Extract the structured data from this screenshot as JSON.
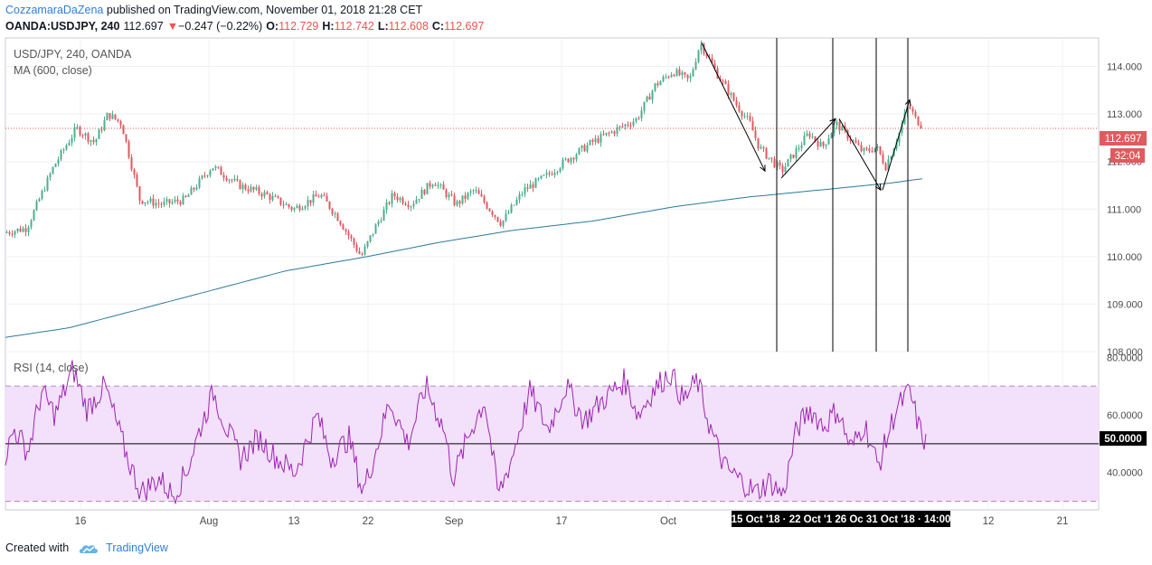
{
  "header": {
    "author": "CozzamaraDaZena",
    "published": "published on TradingView.com, November 01, 2018 21:28 CET"
  },
  "quote": {
    "symbol": "OANDA:USDJPY, 240",
    "price": "112.697",
    "change_arrow": "▼",
    "change": "−0.247 (−0.22%)",
    "open_label": "O:",
    "open": "112.729",
    "high_label": "H:",
    "high": "112.742",
    "low_label": "L:",
    "low": "112.608",
    "close_label": "C:",
    "close": "112.697"
  },
  "footer": {
    "created_with": "Created with",
    "brand": "TradingView",
    "logo_icon": "tradingview-cloud-icon"
  },
  "colors": {
    "up": "#4caf8e",
    "down": "#e05a5f",
    "ma": "#2b7a9e",
    "rsi": "#9c27b0",
    "rsi_band": "#f3e0fb",
    "price_line": "#e05a5f",
    "grid": "#eef0f3"
  },
  "chart_data": [
    {
      "type": "candlestick",
      "title": "USD/JPY, 240, OANDA",
      "indicator_label": "MA (600, close)",
      "ylim": [
        108.0,
        114.6
      ],
      "y_ticks": [
        "108.000",
        "109.000",
        "110.000",
        "111.000",
        "112.000",
        "113.000",
        "114.000"
      ],
      "y_tick_values": [
        108,
        109,
        110,
        111,
        112,
        113,
        114
      ],
      "last_price_label": "112.697",
      "last_price": 112.697,
      "countdown_label": "32:04",
      "grid": true,
      "price_anchors": [
        [
          0,
          110.5
        ],
        [
          25,
          110.6
        ],
        [
          55,
          111.9
        ],
        [
          80,
          112.7
        ],
        [
          100,
          112.4
        ],
        [
          115,
          113.0
        ],
        [
          130,
          112.8
        ],
        [
          150,
          111.2
        ],
        [
          175,
          111.1
        ],
        [
          200,
          111.2
        ],
        [
          230,
          111.9
        ],
        [
          260,
          111.5
        ],
        [
          290,
          111.3
        ],
        [
          320,
          111.0
        ],
        [
          350,
          111.3
        ],
        [
          370,
          110.8
        ],
        [
          395,
          110.0
        ],
        [
          410,
          110.6
        ],
        [
          430,
          111.3
        ],
        [
          450,
          111.1
        ],
        [
          475,
          111.6
        ],
        [
          500,
          111.1
        ],
        [
          520,
          111.4
        ],
        [
          550,
          110.7
        ],
        [
          575,
          111.4
        ],
        [
          600,
          111.7
        ],
        [
          620,
          112.0
        ],
        [
          650,
          112.4
        ],
        [
          680,
          112.7
        ],
        [
          700,
          112.9
        ],
        [
          720,
          113.6
        ],
        [
          740,
          113.9
        ],
        [
          758,
          113.7
        ],
        [
          770,
          114.5
        ],
        [
          790,
          113.8
        ],
        [
          810,
          113.2
        ],
        [
          825,
          112.8
        ],
        [
          835,
          112.3
        ],
        [
          845,
          112.1
        ],
        [
          860,
          111.8
        ],
        [
          875,
          112.2
        ],
        [
          890,
          112.6
        ],
        [
          905,
          112.3
        ],
        [
          920,
          112.8
        ],
        [
          935,
          112.5
        ],
        [
          950,
          112.2
        ],
        [
          965,
          112.3
        ],
        [
          975,
          111.9
        ],
        [
          990,
          112.6
        ],
        [
          1000,
          113.2
        ],
        [
          1008,
          112.9
        ],
        [
          1018,
          112.7
        ]
      ],
      "ma_anchors": [
        [
          0,
          108.3
        ],
        [
          70,
          108.5
        ],
        [
          150,
          108.9
        ],
        [
          230,
          109.3
        ],
        [
          310,
          109.7
        ],
        [
          400,
          110.0
        ],
        [
          480,
          110.3
        ],
        [
          560,
          110.55
        ],
        [
          650,
          110.75
        ],
        [
          740,
          111.05
        ],
        [
          820,
          111.25
        ],
        [
          900,
          111.4
        ],
        [
          980,
          111.55
        ],
        [
          1018,
          111.65
        ]
      ],
      "annotation_lines": [
        [
          [
            770,
            114.5
          ],
          [
            840,
            111.8
          ]
        ],
        [
          [
            858,
            111.65
          ],
          [
            918,
            112.9
          ]
        ],
        [
          [
            922,
            112.9
          ],
          [
            968,
            111.4
          ]
        ],
        [
          [
            970,
            111.4
          ],
          [
            1000,
            113.3
          ]
        ]
      ],
      "annotation_vlines": [
        859,
        921,
        969,
        1004
      ]
    },
    {
      "type": "line",
      "title": "RSI (14, close)",
      "ylim": [
        27,
        82
      ],
      "y_ticks": [
        "40.0000",
        "60.0000",
        "80.0000"
      ],
      "y_tick_values": [
        40,
        60,
        80
      ],
      "band": [
        30,
        70
      ],
      "mid_level": 50,
      "mid_label": "50.0000",
      "rsi_anchors": [
        [
          0,
          46
        ],
        [
          10,
          55
        ],
        [
          25,
          47
        ],
        [
          40,
          68
        ],
        [
          55,
          60
        ],
        [
          75,
          76
        ],
        [
          90,
          62
        ],
        [
          110,
          70
        ],
        [
          125,
          55
        ],
        [
          135,
          45
        ],
        [
          150,
          33
        ],
        [
          170,
          38
        ],
        [
          185,
          32
        ],
        [
          200,
          40
        ],
        [
          215,
          55
        ],
        [
          230,
          68
        ],
        [
          245,
          55
        ],
        [
          260,
          45
        ],
        [
          280,
          52
        ],
        [
          300,
          45
        ],
        [
          320,
          40
        ],
        [
          345,
          60
        ],
        [
          360,
          45
        ],
        [
          380,
          52
        ],
        [
          395,
          33
        ],
        [
          410,
          48
        ],
        [
          425,
          65
        ],
        [
          445,
          50
        ],
        [
          465,
          70
        ],
        [
          485,
          55
        ],
        [
          495,
          38
        ],
        [
          515,
          55
        ],
        [
          530,
          65
        ],
        [
          545,
          32
        ],
        [
          560,
          45
        ],
        [
          580,
          68
        ],
        [
          600,
          55
        ],
        [
          620,
          70
        ],
        [
          640,
          58
        ],
        [
          660,
          65
        ],
        [
          685,
          72
        ],
        [
          700,
          60
        ],
        [
          715,
          68
        ],
        [
          735,
          75
        ],
        [
          750,
          65
        ],
        [
          765,
          72
        ],
        [
          780,
          55
        ],
        [
          795,
          42
        ],
        [
          810,
          38
        ],
        [
          830,
          33
        ],
        [
          845,
          37
        ],
        [
          860,
          32
        ],
        [
          875,
          55
        ],
        [
          890,
          62
        ],
        [
          905,
          56
        ],
        [
          920,
          62
        ],
        [
          935,
          48
        ],
        [
          950,
          57
        ],
        [
          965,
          42
        ],
        [
          985,
          62
        ],
        [
          1000,
          68
        ],
        [
          1010,
          56
        ],
        [
          1018,
          50
        ]
      ],
      "noise_seed": 7
    },
    {
      "type": "time_axis",
      "x_ticks": [
        {
          "label": "16",
          "x": 89
        },
        {
          "label": "Aug",
          "x": 231
        },
        {
          "label": "13",
          "x": 325
        },
        {
          "label": "22",
          "x": 407
        },
        {
          "label": "Sep",
          "x": 502
        },
        {
          "label": "17",
          "x": 621
        },
        {
          "label": "Oct",
          "x": 739
        },
        {
          "label": "12",
          "x": 1093
        },
        {
          "label": "21",
          "x": 1175
        }
      ],
      "highlight_label": "15 Oct '18 · 22 Oct '1 26 Oc 31 Oct '18 · 14:00"
    }
  ]
}
